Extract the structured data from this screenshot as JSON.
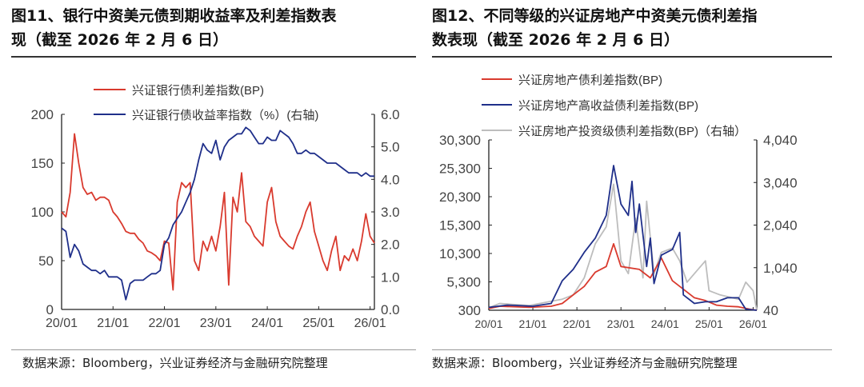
{
  "figures": [
    {
      "title_line1": "图11、银行中资美元债到期收益率及利差指数表",
      "title_line2": "现（截至 2026 年 2 月 6 日）",
      "source": "数据来源：Bloomberg，兴业证券经济与金融研究院整理"
    },
    {
      "title_line1": "图12、不同等级的兴证房地产中资美元债利差指",
      "title_line2": "数表现（截至 2026 年 2 月 6 日）",
      "source": "数据来源：Bloomberg，兴业证券经济与金融研究院整理"
    }
  ],
  "chart_data": [
    {
      "type": "line",
      "x_ticks": [
        "20/01",
        "21/01",
        "22/01",
        "23/01",
        "24/01",
        "25/01",
        "26/01"
      ],
      "x_range": [
        "2020-01",
        "2026-02"
      ],
      "y_left": {
        "range": [
          0,
          200
        ],
        "ticks": [
          "0",
          "50",
          "100",
          "150",
          "200"
        ]
      },
      "y_right": {
        "range": [
          0,
          6
        ],
        "ticks": [
          "0.0",
          "1.0",
          "2.0",
          "3.0",
          "4.0",
          "5.0",
          "6.0"
        ]
      },
      "grid": false,
      "legend": "top",
      "series": [
        {
          "name": "兴证银行债利差指数(BP)",
          "axis": "left",
          "color": "#d93a2e",
          "x": [
            "2020-01",
            "2020-02",
            "2020-03",
            "2020-04",
            "2020-05",
            "2020-06",
            "2020-07",
            "2020-08",
            "2020-09",
            "2020-10",
            "2020-11",
            "2020-12",
            "2021-01",
            "2021-02",
            "2021-03",
            "2021-04",
            "2021-05",
            "2021-06",
            "2021-07",
            "2021-08",
            "2021-09",
            "2021-10",
            "2021-11",
            "2021-12",
            "2022-01",
            "2022-02",
            "2022-03",
            "2022-04",
            "2022-05",
            "2022-06",
            "2022-07",
            "2022-08",
            "2022-09",
            "2022-10",
            "2022-11",
            "2022-12",
            "2023-01",
            "2023-02",
            "2023-03",
            "2023-04",
            "2023-05",
            "2023-06",
            "2023-07",
            "2023-08",
            "2023-09",
            "2023-10",
            "2023-11",
            "2023-12",
            "2024-01",
            "2024-02",
            "2024-03",
            "2024-04",
            "2024-05",
            "2024-06",
            "2024-07",
            "2024-08",
            "2024-09",
            "2024-10",
            "2024-11",
            "2024-12",
            "2025-01",
            "2025-02",
            "2025-03",
            "2025-04",
            "2025-05",
            "2025-06",
            "2025-07",
            "2025-08",
            "2025-09",
            "2025-10",
            "2025-11",
            "2025-12",
            "2026-01",
            "2026-02"
          ],
          "y": [
            100,
            95,
            120,
            180,
            150,
            125,
            118,
            120,
            112,
            115,
            115,
            112,
            100,
            95,
            88,
            80,
            78,
            78,
            72,
            68,
            60,
            58,
            55,
            50,
            70,
            68,
            20,
            110,
            130,
            125,
            130,
            50,
            40,
            70,
            60,
            75,
            60,
            85,
            120,
            25,
            115,
            100,
            140,
            90,
            85,
            75,
            70,
            65,
            110,
            125,
            90,
            75,
            70,
            65,
            62,
            75,
            85,
            100,
            110,
            80,
            65,
            50,
            40,
            60,
            75,
            40,
            55,
            50,
            62,
            50,
            70,
            98,
            75,
            68
          ]
        },
        {
          "name": "兴证银行债收益率指数（%）(右轴)",
          "axis": "right",
          "color": "#1f2f8a",
          "x": [
            "2020-01",
            "2020-02",
            "2020-03",
            "2020-04",
            "2020-05",
            "2020-06",
            "2020-07",
            "2020-08",
            "2020-09",
            "2020-10",
            "2020-11",
            "2020-12",
            "2021-01",
            "2021-02",
            "2021-03",
            "2021-04",
            "2021-05",
            "2021-06",
            "2021-07",
            "2021-08",
            "2021-09",
            "2021-10",
            "2021-11",
            "2021-12",
            "2022-01",
            "2022-02",
            "2022-03",
            "2022-04",
            "2022-05",
            "2022-06",
            "2022-07",
            "2022-08",
            "2022-09",
            "2022-10",
            "2022-11",
            "2022-12",
            "2023-01",
            "2023-02",
            "2023-03",
            "2023-04",
            "2023-05",
            "2023-06",
            "2023-07",
            "2023-08",
            "2023-09",
            "2023-10",
            "2023-11",
            "2023-12",
            "2024-01",
            "2024-02",
            "2024-03",
            "2024-04",
            "2024-05",
            "2024-06",
            "2024-07",
            "2024-08",
            "2024-09",
            "2024-10",
            "2024-11",
            "2024-12",
            "2025-01",
            "2025-02",
            "2025-03",
            "2025-04",
            "2025-05",
            "2025-06",
            "2025-07",
            "2025-08",
            "2025-09",
            "2025-10",
            "2025-11",
            "2025-12",
            "2026-01",
            "2026-02"
          ],
          "y": [
            2.5,
            2.4,
            1.6,
            2.0,
            1.8,
            1.4,
            1.3,
            1.2,
            1.2,
            1.1,
            1.2,
            1.0,
            1.0,
            1.0,
            0.9,
            0.3,
            0.8,
            0.9,
            0.9,
            0.9,
            1.0,
            1.1,
            1.1,
            1.2,
            2.0,
            2.2,
            2.6,
            2.8,
            3.0,
            3.3,
            3.6,
            4.0,
            4.6,
            5.1,
            4.9,
            4.8,
            5.2,
            4.6,
            5.0,
            5.2,
            5.3,
            5.4,
            5.4,
            5.6,
            5.5,
            5.3,
            5.1,
            5.1,
            5.3,
            5.2,
            5.2,
            5.5,
            5.4,
            5.3,
            5.1,
            4.8,
            4.8,
            4.9,
            4.8,
            4.8,
            4.7,
            4.6,
            4.5,
            4.5,
            4.5,
            4.4,
            4.3,
            4.2,
            4.2,
            4.2,
            4.1,
            4.2,
            4.1,
            4.1
          ]
        }
      ]
    },
    {
      "type": "line",
      "x_ticks": [
        "20/01",
        "21/01",
        "22/01",
        "23/01",
        "24/01",
        "25/01",
        "26/01"
      ],
      "x_range": [
        "2020-01",
        "2026-02"
      ],
      "y_left": {
        "range": [
          300,
          30300
        ],
        "ticks": [
          "300",
          "5,300",
          "10,300",
          "15,300",
          "20,300",
          "25,300",
          "30,300"
        ]
      },
      "y_right": {
        "range": [
          40,
          4040
        ],
        "ticks": [
          "40",
          "1,040",
          "2,040",
          "3,040",
          "4,040"
        ]
      },
      "grid": false,
      "legend": "top",
      "series": [
        {
          "name": "兴证房地产债利差指数(BP)",
          "axis": "left",
          "color": "#d93a2e",
          "x": [
            "2020-01",
            "2020-04",
            "2020-12",
            "2021-06",
            "2021-09",
            "2021-12",
            "2022-03",
            "2022-06",
            "2022-09",
            "2022-11",
            "2023-01",
            "2023-06",
            "2023-09",
            "2023-12",
            "2024-03",
            "2024-06",
            "2024-09",
            "2024-12",
            "2025-03",
            "2025-06",
            "2025-09",
            "2025-12",
            "2026-02"
          ],
          "y": [
            600,
            1000,
            800,
            1000,
            1500,
            3000,
            4500,
            7000,
            8000,
            12000,
            8000,
            7500,
            6000,
            9500,
            5500,
            4000,
            2500,
            2000,
            1200,
            1000,
            900,
            500,
            300
          ]
        },
        {
          "name": "兴证房地产高收益债利差指数(BP)",
          "axis": "left",
          "color": "#1f2f8a",
          "x": [
            "2020-01",
            "2020-06",
            "2021-01",
            "2021-06",
            "2021-09",
            "2021-12",
            "2022-03",
            "2022-06",
            "2022-09",
            "2022-11",
            "2023-01",
            "2023-03",
            "2023-04",
            "2023-05",
            "2023-06",
            "2023-08",
            "2023-09",
            "2023-10",
            "2023-12",
            "2024-03",
            "2024-05",
            "2024-06",
            "2024-09",
            "2024-12",
            "2025-03",
            "2025-06",
            "2025-09",
            "2025-11",
            "2026-02"
          ],
          "y": [
            800,
            1200,
            1000,
            1500,
            5500,
            7500,
            10500,
            13000,
            17000,
            25800,
            19000,
            17000,
            23000,
            14000,
            19000,
            8000,
            13000,
            5000,
            10000,
            11000,
            14000,
            3000,
            1500,
            1800,
            1800,
            2500,
            2500,
            500,
            300
          ]
        },
        {
          "name": "兴证房地产投资级债利差指数(BP)（右轴）",
          "axis": "right",
          "color": "#bdbdbd",
          "x": [
            "2020-01",
            "2020-04",
            "2020-12",
            "2021-06",
            "2021-09",
            "2021-12",
            "2022-03",
            "2022-06",
            "2022-09",
            "2022-11",
            "2023-01",
            "2023-03",
            "2023-05",
            "2023-07",
            "2023-08",
            "2023-10",
            "2023-12",
            "2024-03",
            "2024-05",
            "2024-07",
            "2024-09",
            "2024-12",
            "2025-01",
            "2025-04",
            "2025-09",
            "2025-11",
            "2026-01",
            "2026-02"
          ],
          "y": [
            100,
            200,
            150,
            250,
            300,
            400,
            800,
            1600,
            2000,
            3000,
            1200,
            900,
            2200,
            800,
            2600,
            900,
            1400,
            1500,
            1200,
            700,
            900,
            1200,
            500,
            400,
            300,
            700,
            500,
            40
          ]
        }
      ]
    }
  ]
}
